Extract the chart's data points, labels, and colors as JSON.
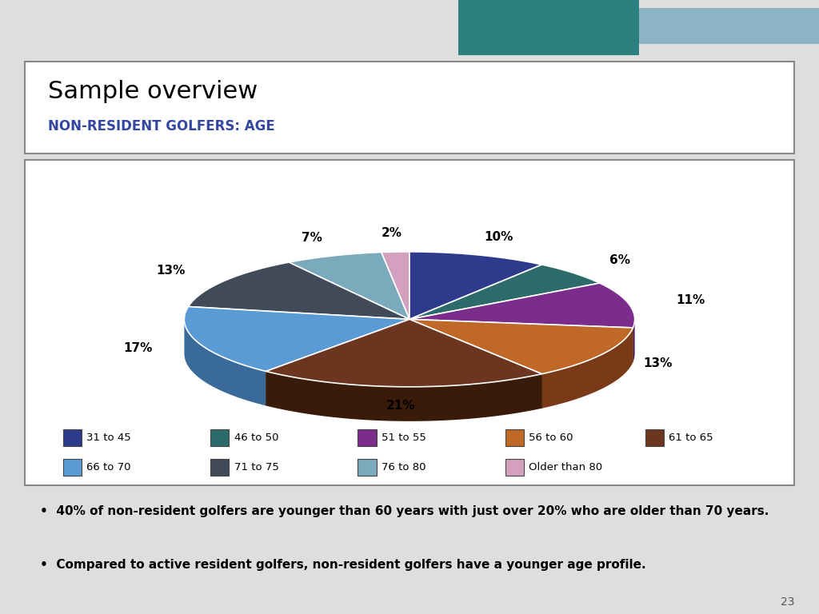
{
  "title": "Sample overview",
  "subtitle": "NON-RESIDENT GOLFERS: AGE",
  "title_color": "#000000",
  "subtitle_color": "#3347A0",
  "categories": [
    "31 to 45",
    "46 to 50",
    "51 to 55",
    "56 to 60",
    "61 to 65",
    "66 to 70",
    "71 to 75",
    "76 to 80",
    "Older than 80"
  ],
  "values": [
    10,
    6,
    11,
    13,
    21,
    17,
    13,
    7,
    2
  ],
  "colors": [
    "#2E3B8C",
    "#2D6B6B",
    "#7B2D8B",
    "#C06828",
    "#6B3520",
    "#5B9BD5",
    "#404A58",
    "#7AAABB",
    "#D4A0C0"
  ],
  "shadow_colors": [
    "#1A2255",
    "#194040",
    "#4A1A55",
    "#7A3A18",
    "#3A1A08",
    "#3A6A9A",
    "#202838",
    "#4A7A8A",
    "#A070A0"
  ],
  "bullet1": "40% of non-resident golfers are younger than 60 years with just over 20% who are older than 70 years.",
  "bullet2": "Compared to active resident golfers, non-resident golfers have a younger age profile.",
  "page_number": "23",
  "bg_color": "#DEDEDE",
  "chart_bg": "#FFFFFF",
  "header_dark": "#2D3748",
  "header_teal": "#2D8080",
  "header_light": "#8BB4C4"
}
